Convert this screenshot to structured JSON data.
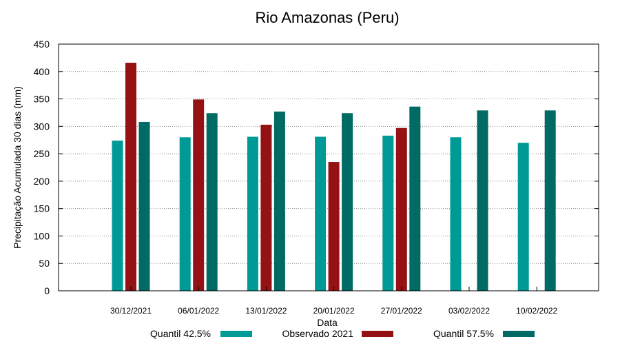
{
  "chart_data": {
    "type": "bar",
    "title": "Rio Amazonas (Peru)",
    "xlabel": "Data",
    "ylabel": "Precipitação Acumulada 30 dias (mm)",
    "ylim": [
      0,
      450
    ],
    "yticks": [
      0,
      50,
      100,
      150,
      200,
      250,
      300,
      350,
      400,
      450
    ],
    "grid": true,
    "legend_position": "bottom",
    "categories": [
      "30/12/2021",
      "06/01/2022",
      "13/01/2022",
      "20/01/2022",
      "27/01/2022",
      "03/02/2022",
      "10/02/2022"
    ],
    "series": [
      {
        "name": "Quantil 42.5%",
        "color": "#009a96",
        "values": [
          274,
          280,
          281,
          281,
          283,
          280,
          270
        ]
      },
      {
        "name": "Observado 2021",
        "color": "#941214",
        "values": [
          416,
          349,
          303,
          235,
          297,
          null,
          null
        ]
      },
      {
        "name": "Quantil 57.5%",
        "color": "#006a64",
        "values": [
          308,
          324,
          327,
          324,
          336,
          329,
          329
        ]
      }
    ]
  }
}
